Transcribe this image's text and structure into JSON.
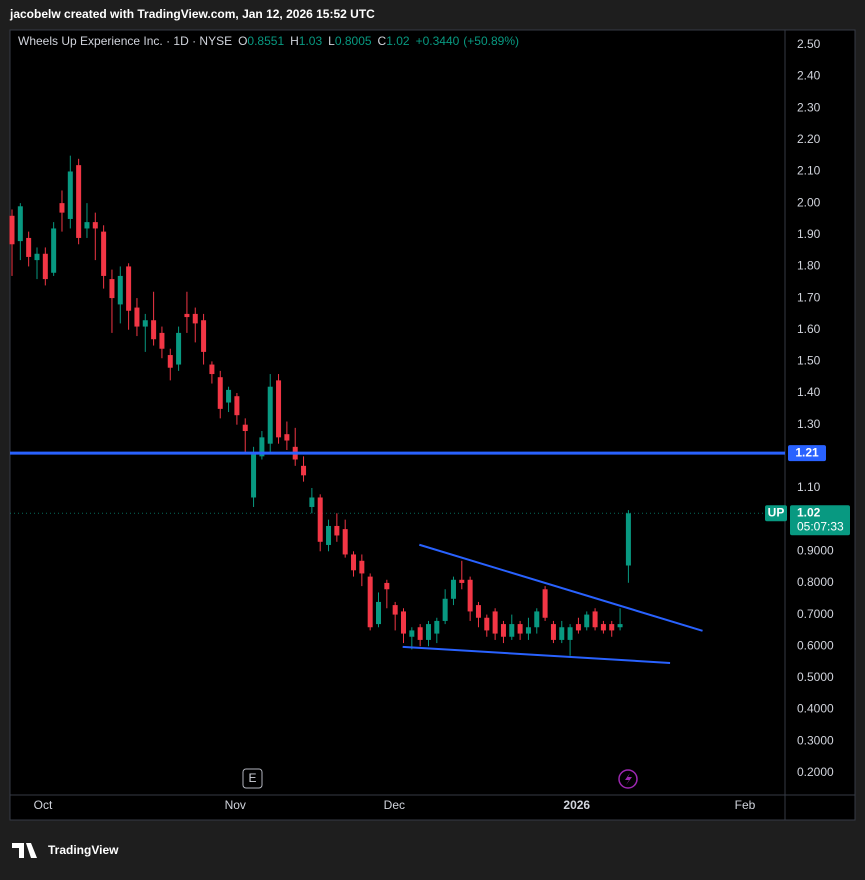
{
  "header": {
    "attribution": "jacobelw created with TradingView.com, Jan 12, 2026 15:52 UTC"
  },
  "chart_data": {
    "type": "candlestick",
    "title": "Wheels Up Experience Inc. · 1D · NYSE",
    "legend": {
      "o_label": "O",
      "open": 0.8551,
      "h_label": "H",
      "high": 1.03,
      "l_label": "L",
      "low": 0.8005,
      "c_label": "C",
      "close": 1.02,
      "change": {
        "value": 0.344,
        "label": "+0.3440"
      },
      "change_pct": {
        "value": 50.89,
        "label": "(+50.89%)"
      }
    },
    "up_color": "#089981",
    "down_color": "#f23645",
    "open": [
      1.96,
      1.88,
      1.89,
      1.82,
      1.84,
      1.78,
      2.0,
      1.95,
      2.12,
      1.92,
      1.94,
      1.91,
      1.76,
      1.68,
      1.8,
      1.67,
      1.61,
      1.63,
      1.59,
      1.52,
      1.49,
      1.65,
      1.65,
      1.63,
      1.49,
      1.45,
      1.37,
      1.39,
      1.3,
      1.07,
      1.2,
      1.24,
      1.44,
      1.27,
      1.23,
      1.17,
      1.04,
      1.07,
      0.92,
      0.98,
      0.97,
      0.89,
      0.87,
      0.82,
      0.67,
      0.8,
      0.73,
      0.71,
      0.63,
      0.66,
      0.62,
      0.64,
      0.68,
      0.75,
      0.81,
      0.81,
      0.73,
      0.69,
      0.71,
      0.67,
      0.63,
      0.67,
      0.64,
      0.66,
      0.78,
      0.67,
      0.62,
      0.62,
      0.67,
      0.66,
      0.71,
      0.67,
      0.67,
      0.66,
      0.8551
    ],
    "high": [
      1.98,
      2.0,
      1.91,
      1.86,
      1.86,
      1.94,
      2.04,
      2.15,
      2.14,
      2.0,
      1.97,
      1.93,
      1.79,
      1.8,
      1.81,
      1.7,
      1.65,
      1.72,
      1.61,
      1.54,
      1.61,
      1.72,
      1.67,
      1.65,
      1.5,
      1.47,
      1.42,
      1.4,
      1.32,
      1.23,
      1.28,
      1.46,
      1.46,
      1.31,
      1.29,
      1.2,
      1.1,
      1.08,
      1.0,
      1.02,
      1.0,
      0.9,
      0.89,
      0.83,
      0.77,
      0.81,
      0.74,
      0.72,
      0.66,
      0.67,
      0.68,
      0.69,
      0.78,
      0.82,
      0.87,
      0.82,
      0.74,
      0.7,
      0.72,
      0.68,
      0.7,
      0.68,
      0.69,
      0.72,
      0.79,
      0.68,
      0.68,
      0.67,
      0.69,
      0.71,
      0.72,
      0.68,
      0.68,
      0.72,
      1.03
    ],
    "low": [
      1.77,
      1.82,
      1.8,
      1.76,
      1.74,
      1.77,
      1.91,
      1.92,
      1.87,
      1.89,
      1.82,
      1.73,
      1.59,
      1.62,
      1.6,
      1.58,
      1.53,
      1.55,
      1.51,
      1.44,
      1.47,
      1.59,
      1.56,
      1.49,
      1.43,
      1.32,
      1.34,
      1.3,
      1.21,
      1.04,
      1.19,
      1.21,
      1.24,
      1.22,
      1.17,
      1.12,
      1.02,
      0.9,
      0.9,
      0.93,
      0.88,
      0.82,
      0.79,
      0.65,
      0.66,
      0.72,
      0.65,
      0.61,
      0.59,
      0.6,
      0.6,
      0.61,
      0.67,
      0.73,
      0.78,
      0.68,
      0.66,
      0.63,
      0.62,
      0.61,
      0.62,
      0.62,
      0.62,
      0.64,
      0.68,
      0.61,
      0.61,
      0.57,
      0.64,
      0.65,
      0.65,
      0.64,
      0.63,
      0.65,
      0.8005
    ],
    "close": [
      1.87,
      1.99,
      1.83,
      1.84,
      1.76,
      1.92,
      1.97,
      2.1,
      1.89,
      1.94,
      1.92,
      1.77,
      1.7,
      1.77,
      1.66,
      1.61,
      1.63,
      1.57,
      1.54,
      1.48,
      1.59,
      1.64,
      1.62,
      1.53,
      1.46,
      1.35,
      1.41,
      1.33,
      1.28,
      1.21,
      1.26,
      1.42,
      1.26,
      1.25,
      1.19,
      1.14,
      1.07,
      0.93,
      0.98,
      0.95,
      0.89,
      0.84,
      0.83,
      0.66,
      0.74,
      0.78,
      0.7,
      0.64,
      0.65,
      0.62,
      0.67,
      0.68,
      0.75,
      0.81,
      0.8,
      0.71,
      0.69,
      0.65,
      0.64,
      0.63,
      0.67,
      0.64,
      0.66,
      0.71,
      0.69,
      0.62,
      0.66,
      0.66,
      0.65,
      0.7,
      0.66,
      0.65,
      0.65,
      0.67,
      1.02
    ],
    "xlim": [
      -0.24,
      92.8
    ],
    "xticks": [
      {
        "value": 3.72,
        "label": "Oct"
      },
      {
        "value": 26.8,
        "label": "Nov"
      },
      {
        "value": 45.9,
        "label": "Dec"
      },
      {
        "value": 67.8,
        "label": "2026"
      },
      {
        "value": 88.0,
        "label": "Feb"
      }
    ],
    "ylim": [
      0.13,
      2.547
    ],
    "yticks": [
      {
        "value": 2.5,
        "label": "2.50"
      },
      {
        "value": 2.4,
        "label": "2.40"
      },
      {
        "value": 2.3,
        "label": "2.30"
      },
      {
        "value": 2.2,
        "label": "2.20"
      },
      {
        "value": 2.1,
        "label": "2.10"
      },
      {
        "value": 2.0,
        "label": "2.00"
      },
      {
        "value": 1.9,
        "label": "1.90"
      },
      {
        "value": 1.8,
        "label": "1.80"
      },
      {
        "value": 1.7,
        "label": "1.70"
      },
      {
        "value": 1.6,
        "label": "1.60"
      },
      {
        "value": 1.5,
        "label": "1.50"
      },
      {
        "value": 1.4,
        "label": "1.40"
      },
      {
        "value": 1.3,
        "label": "1.30"
      },
      {
        "value": 1.1,
        "label": "1.10"
      },
      {
        "value": 0.9,
        "label": "0.9000"
      },
      {
        "value": 0.8,
        "label": "0.8000"
      },
      {
        "value": 0.7,
        "label": "0.7000"
      },
      {
        "value": 0.6,
        "label": "0.6000"
      },
      {
        "value": 0.5,
        "label": "0.5000"
      },
      {
        "value": 0.4,
        "label": "0.4000"
      },
      {
        "value": 0.3,
        "label": "0.3000"
      },
      {
        "value": 0.2,
        "label": "0.2000"
      }
    ],
    "horizontal_line": {
      "value": 1.21,
      "color": "#2962ff"
    },
    "trendlines": [
      {
        "x": [
          48.9,
          82.9
        ],
        "y": [
          0.9206,
          0.6488
        ],
        "color": "#2962ff"
      },
      {
        "x": [
          46.9,
          79.0
        ],
        "y": [
          0.598,
          0.5472
        ],
        "color": "#2962ff"
      }
    ],
    "last_price": {
      "symbol": "UP",
      "value": 1.02,
      "countdown": "05:07:33"
    },
    "earnings_marker": "E"
  },
  "footer": {
    "brand": "TradingView"
  }
}
